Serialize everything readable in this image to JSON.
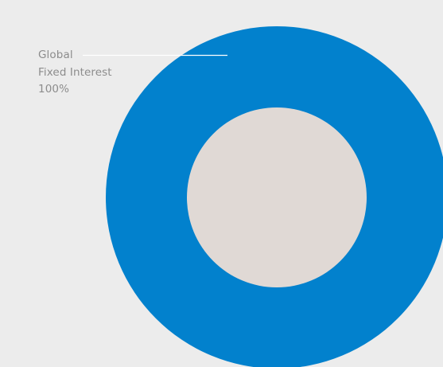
{
  "chart_data": {
    "type": "pie",
    "title": "",
    "slices": [
      {
        "label_lines": [
          "Global",
          "Fixed Interest"
        ],
        "value": 100,
        "value_label": "100%",
        "color": "#0281cd"
      }
    ],
    "inner_color": "#e0d9d5",
    "leader_line_color": "#ffffff"
  }
}
